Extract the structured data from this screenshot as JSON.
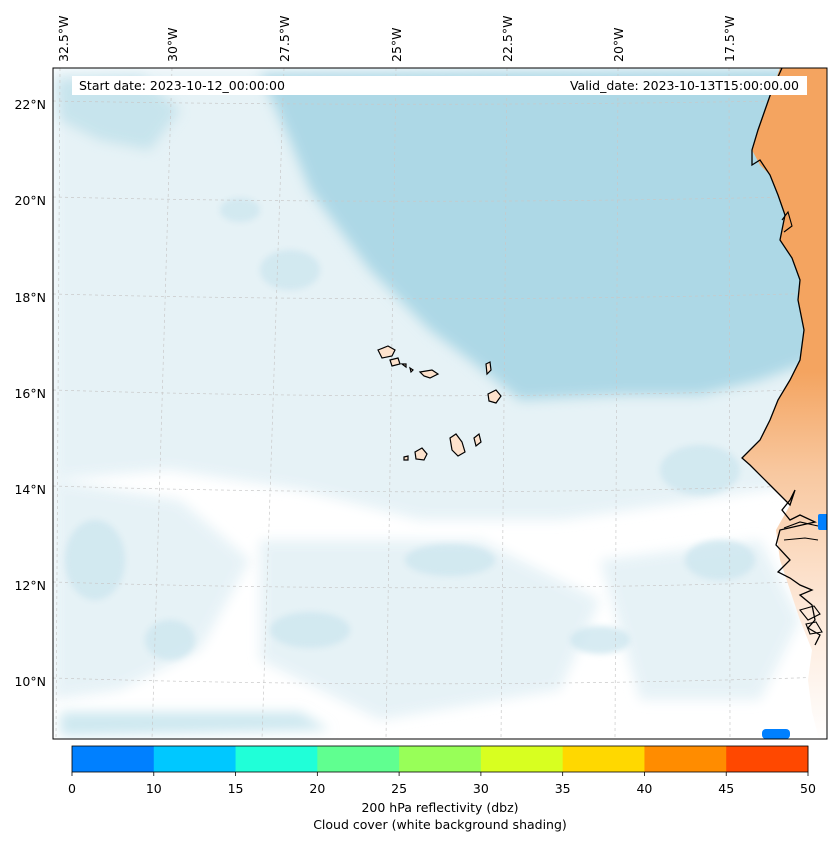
{
  "header": {
    "start_date": "Start date: 2023-10-12_00:00:00",
    "valid_date": "Valid_date: 2023-10-13T15:00:00.00"
  },
  "map": {
    "longitude_labels": [
      "32.5°W",
      "30°W",
      "27.5°W",
      "25°W",
      "22.5°W",
      "20°W",
      "17.5°W"
    ],
    "latitude_labels": [
      "22°N",
      "20°N",
      "18°N",
      "16°N",
      "14°N",
      "12°N",
      "10°N"
    ],
    "colors": {
      "cloud_cover": "#add8e6",
      "land_dry": "#f4a460",
      "land_light": "#fde2cc",
      "coastline": "#000000",
      "gridline": "#b0b0b0"
    }
  },
  "colorbar": {
    "ticks": [
      "0",
      "10",
      "15",
      "20",
      "25",
      "30",
      "35",
      "40",
      "45",
      "50"
    ],
    "colors": [
      "#0080ff",
      "#00c8ff",
      "#20ffd8",
      "#60ff90",
      "#98ff58",
      "#d8ff20",
      "#ffd800",
      "#ff8c00",
      "#ff4800"
    ],
    "label_line1": "200 hPa reflectivity (dbz)",
    "label_line2": "Cloud cover (white background shading)"
  }
}
